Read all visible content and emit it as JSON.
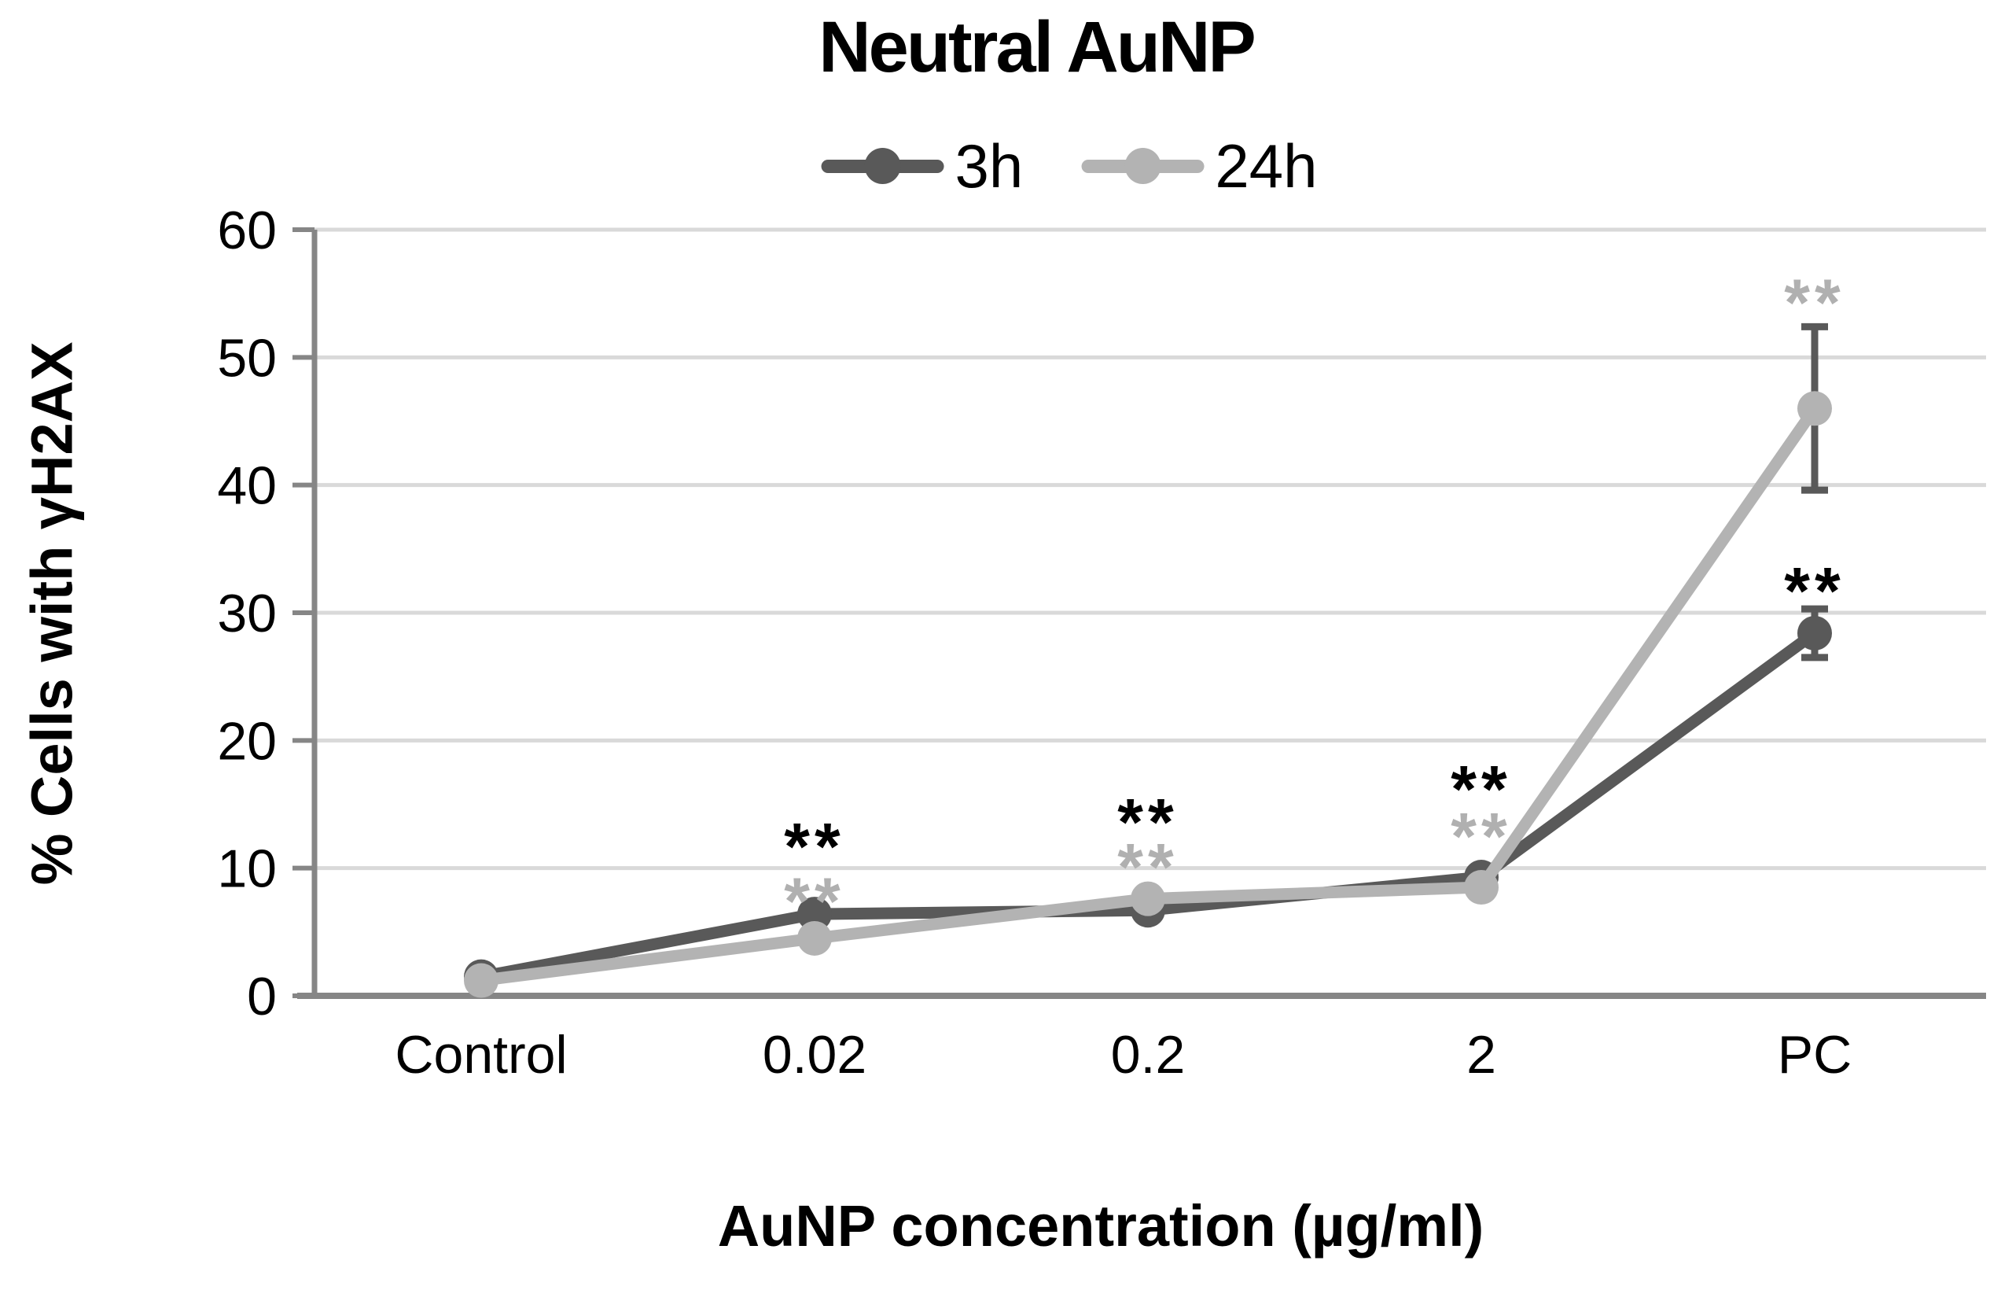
{
  "title": "Neutral AuNP",
  "axes": {
    "y_label": "% Cells with γH2AX",
    "x_label": "AuNP concentration (µg/ml)"
  },
  "colors": {
    "grid": "#d9d9d9",
    "axis": "#868686",
    "error_bar": "#595959",
    "text": "#000000"
  },
  "chart_data": {
    "type": "line",
    "title": "Neutral AuNP",
    "xlabel": "AuNP concentration (µg/ml)",
    "ylabel": "% Cells with γH2AX",
    "categories": [
      "Control",
      "0.02",
      "0.2",
      "2",
      "PC"
    ],
    "series": [
      {
        "name": "3h",
        "color": "#595959",
        "values": [
          1.5,
          6.4,
          6.7,
          9.3,
          28.4
        ],
        "errors": [
          null,
          null,
          null,
          null,
          1.9
        ]
      },
      {
        "name": "24h",
        "color": "#b3b3b3",
        "values": [
          1.2,
          4.5,
          7.6,
          8.5,
          46.0
        ],
        "errors": [
          null,
          null,
          null,
          null,
          6.4
        ]
      }
    ],
    "ylim": [
      0,
      60
    ],
    "yticks": [
      0,
      10,
      20,
      30,
      40,
      50,
      60
    ],
    "grid": true,
    "legend_position": "top-center",
    "annotations": [
      {
        "category": "0.02",
        "text": "**",
        "value": 13.5,
        "color": "#000000",
        "meaning": "significant vs control (3h)"
      },
      {
        "category": "0.02",
        "text": "**",
        "value": 9.2,
        "color": "#b0b0b0",
        "meaning": "significant vs control (24h)"
      },
      {
        "category": "0.2",
        "text": "**",
        "value": 15.4,
        "color": "#000000",
        "meaning": "significant vs control (3h)"
      },
      {
        "category": "0.2",
        "text": "**",
        "value": 11.9,
        "color": "#b0b0b0",
        "meaning": "significant vs control (24h)"
      },
      {
        "category": "2",
        "text": "**",
        "value": 18.0,
        "color": "#000000",
        "meaning": "significant vs control (3h)"
      },
      {
        "category": "2",
        "text": "**",
        "value": 14.3,
        "color": "#b0b0b0",
        "meaning": "significant vs control (24h)"
      },
      {
        "category": "PC",
        "text": "**",
        "value": 56.1,
        "color": "#b0b0b0",
        "meaning": "significant vs control (24h)"
      },
      {
        "category": "PC",
        "text": "**",
        "value": 33.5,
        "color": "#000000",
        "meaning": "significant vs control (3h)"
      }
    ]
  }
}
